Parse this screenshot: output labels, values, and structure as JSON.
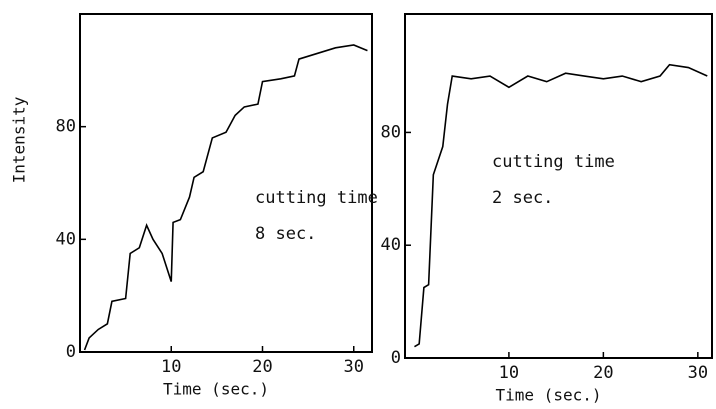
{
  "chart_data": [
    {
      "type": "line",
      "ylabel": "Intensity",
      "xlabel": "Time (sec.)",
      "annotations": [
        "cutting time",
        "8 sec."
      ],
      "x": [
        0.5,
        1,
        2,
        3,
        3.5,
        5,
        5.5,
        6.5,
        7.3,
        8,
        9,
        9.8,
        10,
        10.2,
        11,
        12,
        12.5,
        13.5,
        14.5,
        16,
        17,
        18,
        19.5,
        20,
        22,
        23.5,
        24,
        26,
        28,
        30,
        31.5
      ],
      "series": [
        {
          "name": "cutting time 8 sec.",
          "color": "#000000",
          "values": [
            0.7,
            5,
            8,
            10,
            18,
            19,
            35,
            37,
            45,
            40,
            35,
            27,
            25,
            46,
            47,
            55,
            62,
            64,
            76,
            78,
            84,
            87,
            88,
            96,
            97,
            98,
            104,
            106,
            108,
            109,
            107
          ]
        }
      ],
      "xlim": [
        0,
        32
      ],
      "ylim": [
        0,
        120
      ],
      "xticks": [
        10,
        20,
        30
      ],
      "yticks": [
        0,
        40,
        80
      ]
    },
    {
      "type": "line",
      "xlabel": "Time (sec.)",
      "annotations": [
        "cutting time",
        "2 sec."
      ],
      "x": [
        0,
        0.5,
        1,
        1.5,
        2,
        3,
        3.5,
        4,
        6,
        8,
        10,
        12,
        14,
        16,
        18,
        20,
        22,
        24,
        26,
        27,
        29,
        31
      ],
      "series": [
        {
          "name": "cutting time 2 sec.",
          "color": "#000000",
          "values": [
            4,
            5,
            25,
            26,
            65,
            75,
            90,
            100,
            99,
            100,
            96,
            100,
            98,
            101,
            100,
            99,
            100,
            98,
            100,
            104,
            103,
            100
          ]
        }
      ],
      "xlim": [
        -1,
        31.5
      ],
      "ylim": [
        0,
        122
      ],
      "xticks": [
        10,
        20,
        30
      ],
      "yticks": [
        0,
        40,
        80
      ]
    }
  ]
}
